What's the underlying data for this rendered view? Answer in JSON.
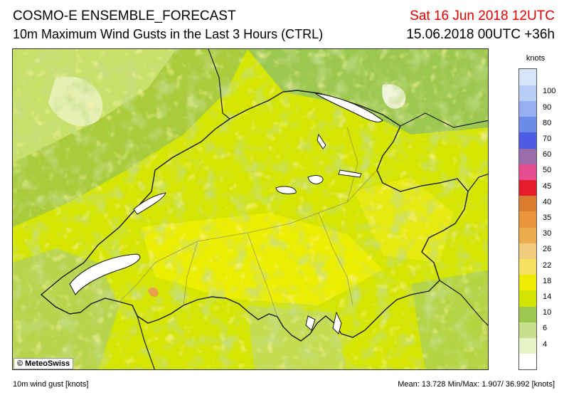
{
  "header": {
    "title": "COSMO-E ENSEMBLE_FORECAST",
    "subtitle": "10m Maximum Wind Gusts in the Last 3 Hours (CTRL)",
    "valid_time": "Sat 16 Jun 2018 12UTC",
    "run_time": "15.06.2018 00UTC +36h"
  },
  "map": {
    "copyright": "© MeteoSwiss",
    "dominant_colors": [
      "#d4e500",
      "#ecee00",
      "#a8cc3c",
      "#c8e06a",
      "#8cb840",
      "#f4f090"
    ]
  },
  "legend": {
    "unit": "knots",
    "bins": [
      {
        "label": "",
        "color": "#ffffff"
      },
      {
        "label": "4",
        "color": "#e8f4c8"
      },
      {
        "label": "6",
        "color": "#c8e08c"
      },
      {
        "label": "10",
        "color": "#9cc850"
      },
      {
        "label": "14",
        "color": "#d2e400"
      },
      {
        "label": "18",
        "color": "#f0ec00"
      },
      {
        "label": "22",
        "color": "#f8e060"
      },
      {
        "label": "26",
        "color": "#f4cc80"
      },
      {
        "label": "30",
        "color": "#ecac4c"
      },
      {
        "label": "35",
        "color": "#e8943c"
      },
      {
        "label": "40",
        "color": "#dc7c30"
      },
      {
        "label": "45",
        "color": "#e41c2c"
      },
      {
        "label": "50",
        "color": "#e84c90"
      },
      {
        "label": "60",
        "color": "#9c6cac"
      },
      {
        "label": "70",
        "color": "#4c5ce4"
      },
      {
        "label": "80",
        "color": "#6c8ce8"
      },
      {
        "label": "90",
        "color": "#94b0f0"
      },
      {
        "label": "100",
        "color": "#b8ccf4"
      },
      {
        "label": "",
        "color": "#d8e4fa"
      }
    ]
  },
  "footer": {
    "variable": "10m wind gust [knots]",
    "stats": "Mean:  13.728 Min/Max:   1.907/ 36.992 [knots]"
  }
}
